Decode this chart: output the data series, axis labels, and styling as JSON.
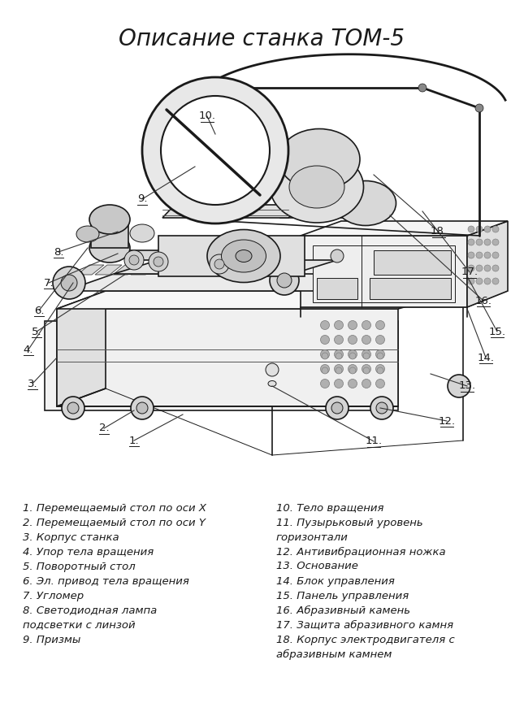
{
  "title": "Описание станка ТОМ-5",
  "title_fontsize": 20,
  "background_color": "#ffffff",
  "text_color": "#1a1a1a",
  "legend_col1": [
    "1. Перемещаемый стол по оси X",
    "2. Перемещаемый стол по оси Y",
    "3. Корпус станка",
    "4. Упор тела вращения",
    "5. Поворотный стол",
    "6. Эл. привод тела вращения",
    "7. Угломер",
    "8. Светодиодная лампа",
    "подсветки с линзой",
    "9. Призмы"
  ],
  "legend_col2": [
    "10. Тело вращения",
    "11. Пузырьковый уровень",
    "горизонтали",
    "12. Антивибрационная ножка",
    "13. Основание",
    "14. Блок управления",
    "15. Панель управления",
    "16. Абразивный камень",
    "17. Защита абразивного камня",
    "18. Корпус электродвигателя с",
    "абразивным камнем"
  ],
  "line_color": "#1a1a1a",
  "lw_main": 1.2,
  "lw_thin": 0.7,
  "lw_thick": 2.0
}
